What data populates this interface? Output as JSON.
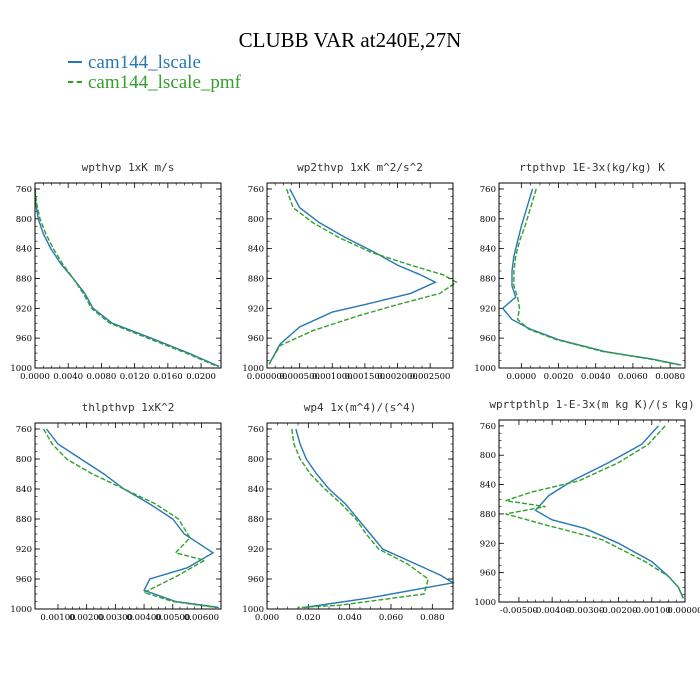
{
  "title": "CLUBB VAR at240E,27N",
  "legend": [
    {
      "label": "cam144_lscale",
      "color": "#2878b4"
    },
    {
      "label": "cam144_lscale_pmf",
      "color": "#33a02c"
    }
  ],
  "chart_data": [
    {
      "type": "line",
      "title": "wpthvp   1xK m/s",
      "xlim": [
        0.0,
        0.0224
      ],
      "ylim": [
        1000,
        752
      ],
      "xticks": [
        0.0,
        0.004,
        0.008,
        0.012,
        0.016,
        0.02
      ],
      "xticklabels": [
        "0.0000",
        "0.0040",
        "0.0080",
        "0.0120",
        "0.0160",
        "0.0200"
      ],
      "yticks": [
        760,
        800,
        840,
        880,
        920,
        960,
        1000
      ],
      "series": [
        {
          "name": "cam144_lscale",
          "points": [
            [
              0.0,
              760
            ],
            [
              0.0001,
              780
            ],
            [
              0.0004,
              800
            ],
            [
              0.001,
              820
            ],
            [
              0.0019,
              840
            ],
            [
              0.0031,
              860
            ],
            [
              0.0046,
              880
            ],
            [
              0.006,
              900
            ],
            [
              0.007,
              920
            ],
            [
              0.0093,
              940
            ],
            [
              0.014,
              960
            ],
            [
              0.0185,
              980
            ],
            [
              0.0222,
              998
            ]
          ]
        },
        {
          "name": "cam144_lscale_pmf",
          "points": [
            [
              0.0,
              760
            ],
            [
              0.0002,
              780
            ],
            [
              0.0006,
              800
            ],
            [
              0.0013,
              820
            ],
            [
              0.0022,
              840
            ],
            [
              0.0033,
              860
            ],
            [
              0.0046,
              880
            ],
            [
              0.0058,
              900
            ],
            [
              0.0068,
              920
            ],
            [
              0.009,
              940
            ],
            [
              0.0136,
              960
            ],
            [
              0.0182,
              980
            ],
            [
              0.022,
              998
            ]
          ]
        }
      ]
    },
    {
      "type": "line",
      "title": "wp2thvp   1xK m^2/s^2",
      "xlim": [
        0.0,
        0.00285
      ],
      "ylim": [
        1000,
        752
      ],
      "xticks": [
        0.0,
        0.0005,
        0.001,
        0.0015,
        0.002,
        0.0025
      ],
      "xticklabels": [
        "0.000000",
        "0.000500",
        "0.001000",
        "0.001500",
        "0.002000",
        "0.002500"
      ],
      "yticks": [
        760,
        800,
        840,
        880,
        920,
        960,
        1000
      ],
      "series": [
        {
          "name": "cam144_lscale",
          "points": [
            [
              0.00035,
              760
            ],
            [
              0.0005,
              785
            ],
            [
              0.0008,
              805
            ],
            [
              0.0012,
              825
            ],
            [
              0.00165,
              845
            ],
            [
              0.002,
              862
            ],
            [
              0.00235,
              875
            ],
            [
              0.00258,
              885
            ],
            [
              0.0022,
              900
            ],
            [
              0.0015,
              915
            ],
            [
              0.001,
              925
            ],
            [
              0.0005,
              945
            ],
            [
              0.0002,
              968
            ],
            [
              3e-05,
              995
            ]
          ]
        },
        {
          "name": "cam144_lscale_pmf",
          "points": [
            [
              0.0003,
              760
            ],
            [
              0.0004,
              785
            ],
            [
              0.0007,
              805
            ],
            [
              0.0011,
              825
            ],
            [
              0.0016,
              845
            ],
            [
              0.0022,
              862
            ],
            [
              0.0027,
              875
            ],
            [
              0.0029,
              885
            ],
            [
              0.00265,
              900
            ],
            [
              0.002,
              915
            ],
            [
              0.0014,
              930
            ],
            [
              0.0007,
              950
            ],
            [
              0.0002,
              970
            ],
            [
              3e-05,
              995
            ]
          ]
        }
      ]
    },
    {
      "type": "line",
      "title": "rtpthvp   1E-3x(kg/kg) K",
      "xlim": [
        -0.0012,
        0.0088
      ],
      "ylim": [
        1000,
        752
      ],
      "xticks": [
        0.0,
        0.002,
        0.004,
        0.006,
        0.008
      ],
      "xticklabels": [
        "0.0000",
        "0.0020",
        "0.0040",
        "0.0060",
        "0.0080"
      ],
      "yticks": [
        760,
        800,
        840,
        880,
        920,
        960,
        1000
      ],
      "series": [
        {
          "name": "cam144_lscale",
          "points": [
            [
              0.0006,
              760
            ],
            [
              0.0003,
              785
            ],
            [
              0.0,
              810
            ],
            [
              -0.0002,
              830
            ],
            [
              -0.0004,
              850
            ],
            [
              -0.0005,
              870
            ],
            [
              -0.0005,
              890
            ],
            [
              -0.0003,
              905
            ],
            [
              -0.001,
              920
            ],
            [
              -0.0005,
              935
            ],
            [
              0.0005,
              948
            ],
            [
              0.002,
              962
            ],
            [
              0.0045,
              978
            ],
            [
              0.007,
              988
            ],
            [
              0.0086,
              996
            ]
          ]
        },
        {
          "name": "cam144_lscale_pmf",
          "points": [
            [
              0.0008,
              760
            ],
            [
              0.0005,
              785
            ],
            [
              0.0002,
              810
            ],
            [
              -0.0001,
              830
            ],
            [
              -0.0003,
              850
            ],
            [
              -0.0004,
              870
            ],
            [
              -0.0004,
              890
            ],
            [
              -0.0002,
              905
            ],
            [
              -0.0001,
              920
            ],
            [
              -0.0002,
              935
            ],
            [
              0.0004,
              948
            ],
            [
              0.0019,
              962
            ],
            [
              0.0044,
              978
            ],
            [
              0.0069,
              988
            ],
            [
              0.0085,
              996
            ]
          ]
        }
      ]
    },
    {
      "type": "line",
      "title": "thlpthvp   1xK^2",
      "xlim": [
        0.0002,
        0.00668
      ],
      "ylim": [
        1000,
        752
      ],
      "xticks": [
        0.001,
        0.002,
        0.003,
        0.004,
        0.005,
        0.006
      ],
      "xticklabels": [
        "0.00100",
        "0.00200",
        "0.00300",
        "0.00400",
        "0.00500",
        "0.00600"
      ],
      "yticks": [
        760,
        800,
        840,
        880,
        920,
        960,
        1000
      ],
      "series": [
        {
          "name": "cam144_lscale",
          "points": [
            [
              0.0006,
              760
            ],
            [
              0.001,
              780
            ],
            [
              0.0018,
              800
            ],
            [
              0.0026,
              820
            ],
            [
              0.0033,
              840
            ],
            [
              0.0042,
              860
            ],
            [
              0.005,
              880
            ],
            [
              0.0054,
              900
            ],
            [
              0.0064,
              925
            ],
            [
              0.0055,
              945
            ],
            [
              0.0042,
              960
            ],
            [
              0.004,
              975
            ],
            [
              0.0051,
              990
            ],
            [
              0.0066,
              998
            ]
          ]
        },
        {
          "name": "cam144_lscale_pmf",
          "points": [
            [
              0.0005,
              760
            ],
            [
              0.0008,
              780
            ],
            [
              0.0013,
              800
            ],
            [
              0.0022,
              820
            ],
            [
              0.0033,
              840
            ],
            [
              0.0044,
              860
            ],
            [
              0.0052,
              880
            ],
            [
              0.0056,
              905
            ],
            [
              0.0051,
              925
            ],
            [
              0.0061,
              935
            ],
            [
              0.0052,
              955
            ],
            [
              0.004,
              978
            ],
            [
              0.005,
              990
            ],
            [
              0.0065,
              998
            ]
          ]
        }
      ]
    },
    {
      "type": "line",
      "title": "wp4   1x(m^4)/(s^4)",
      "xlim": [
        0.0,
        0.09
      ],
      "ylim": [
        1000,
        752
      ],
      "xticks": [
        0.0,
        0.02,
        0.04,
        0.06,
        0.08
      ],
      "xticklabels": [
        "0.000",
        "0.020",
        "0.040",
        "0.060",
        "0.080"
      ],
      "yticks": [
        760,
        800,
        840,
        880,
        920,
        960,
        1000
      ],
      "series": [
        {
          "name": "cam144_lscale",
          "points": [
            [
              0.014,
              760
            ],
            [
              0.016,
              780
            ],
            [
              0.019,
              800
            ],
            [
              0.024,
              820
            ],
            [
              0.03,
              840
            ],
            [
              0.038,
              860
            ],
            [
              0.044,
              880
            ],
            [
              0.05,
              900
            ],
            [
              0.056,
              920
            ],
            [
              0.072,
              940
            ],
            [
              0.084,
              955
            ],
            [
              0.09,
              965
            ],
            [
              0.05,
              985
            ],
            [
              0.018,
              998
            ]
          ]
        },
        {
          "name": "cam144_lscale_pmf",
          "points": [
            [
              0.012,
              760
            ],
            [
              0.013,
              780
            ],
            [
              0.016,
              800
            ],
            [
              0.021,
              820
            ],
            [
              0.028,
              840
            ],
            [
              0.036,
              860
            ],
            [
              0.043,
              880
            ],
            [
              0.048,
              900
            ],
            [
              0.054,
              920
            ],
            [
              0.068,
              940
            ],
            [
              0.078,
              960
            ],
            [
              0.076,
              980
            ],
            [
              0.035,
              995
            ],
            [
              0.015,
              998
            ]
          ]
        }
      ]
    },
    {
      "type": "line",
      "title": "wprtpthlp   1-E-3x(m kg K)/(s kg)",
      "xlim": [
        -0.0056,
        0.0
      ],
      "ylim": [
        1000,
        752
      ],
      "xticks": [
        -0.005,
        -0.004,
        -0.003,
        -0.002,
        -0.001,
        0.0
      ],
      "xticklabels": [
        "-0.00500",
        "-0.00400",
        "-0.00300",
        "-0.00200",
        "-0.00100",
        "0.00000"
      ],
      "yticks": [
        760,
        800,
        840,
        880,
        920,
        960,
        1000
      ],
      "series": [
        {
          "name": "cam144_lscale",
          "points": [
            [
              -0.0008,
              760
            ],
            [
              -0.0013,
              785
            ],
            [
              -0.0023,
              810
            ],
            [
              -0.0034,
              835
            ],
            [
              -0.0041,
              855
            ],
            [
              -0.0045,
              875
            ],
            [
              -0.004,
              888
            ],
            [
              -0.003,
              900
            ],
            [
              -0.002,
              920
            ],
            [
              -0.001,
              945
            ],
            [
              -0.0005,
              965
            ],
            [
              -0.0002,
              980
            ],
            [
              -5e-05,
              995
            ]
          ]
        },
        {
          "name": "cam144_lscale_pmf",
          "points": [
            [
              -0.0006,
              760
            ],
            [
              -0.0011,
              785
            ],
            [
              -0.002,
              810
            ],
            [
              -0.0032,
              835
            ],
            [
              -0.0046,
              850
            ],
            [
              -0.0054,
              862
            ],
            [
              -0.0042,
              870
            ],
            [
              -0.0054,
              880
            ],
            [
              -0.0042,
              895
            ],
            [
              -0.0025,
              915
            ],
            [
              -0.0012,
              945
            ],
            [
              -0.0005,
              965
            ],
            [
              -0.0002,
              980
            ],
            [
              -5e-05,
              995
            ]
          ]
        }
      ]
    }
  ]
}
